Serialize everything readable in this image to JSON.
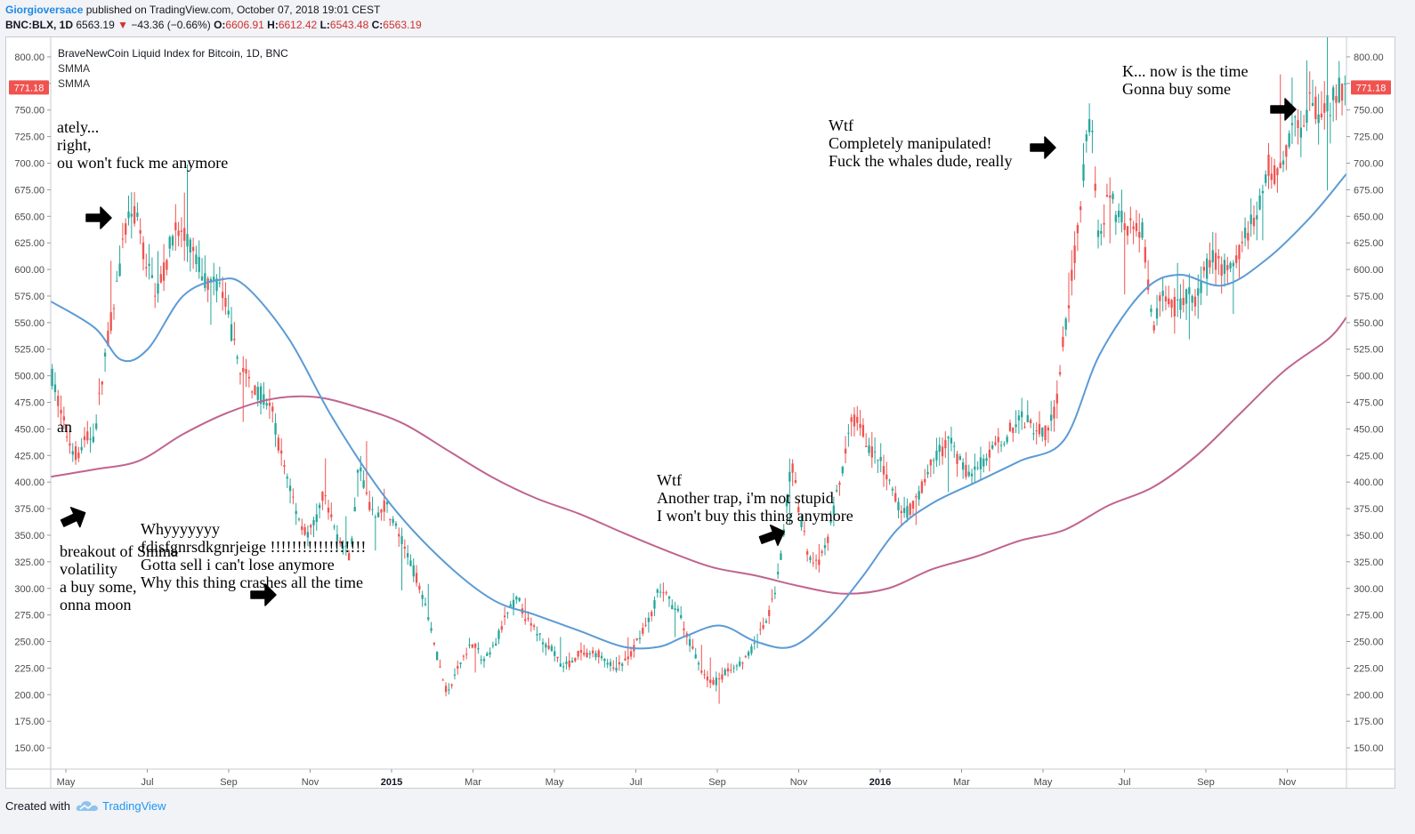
{
  "header": {
    "author": "Giorgioversace",
    "published": "published on TradingView.com, October 07, 2018 19:01 CEST",
    "symbol": "BNC:BLX, 1D",
    "last": "6563.19",
    "change": "−43.36 (−0.66%)",
    "o_label": "O:",
    "o_value": "6606.91",
    "h_label": "H:",
    "h_value": "6612.42",
    "l_label": "L:",
    "l_value": "6543.48",
    "c_label": "C:",
    "c_value": "6563.19",
    "down_icon": "triangle-down-icon"
  },
  "legend": {
    "title": "BraveNewCoin Liquid Index for Bitcoin, 1D, BNC",
    "ind1": "SMMA",
    "ind2": "SMMA"
  },
  "footer": {
    "created_with": "Created with",
    "brand": "TradingView",
    "logo_icon": "tradingview-cloud-icon"
  },
  "colors": {
    "up": "#26a69a",
    "down": "#ef5350",
    "smma_fast": "#5b9bd5",
    "smma_slow": "#c0648f",
    "price_badge": "#ef5350"
  },
  "chart_data": {
    "type": "candlestick",
    "ylim": [
      130,
      810
    ],
    "y_ticks": [
      "800.00",
      "775.00",
      "750.00",
      "725.00",
      "700.00",
      "675.00",
      "650.00",
      "625.00",
      "600.00",
      "575.00",
      "550.00",
      "525.00",
      "500.00",
      "475.00",
      "450.00",
      "425.00",
      "400.00",
      "375.00",
      "350.00",
      "325.00",
      "300.00",
      "275.00",
      "250.00",
      "225.00",
      "200.00",
      "175.00",
      "150.00"
    ],
    "current_price": "771.18",
    "x_ticks": [
      {
        "label": "May",
        "bold": false
      },
      {
        "label": "Jul",
        "bold": false
      },
      {
        "label": "Sep",
        "bold": false
      },
      {
        "label": "Nov",
        "bold": false
      },
      {
        "label": "2015",
        "bold": true
      },
      {
        "label": "Mar",
        "bold": false
      },
      {
        "label": "May",
        "bold": false
      },
      {
        "label": "Jul",
        "bold": false
      },
      {
        "label": "Sep",
        "bold": false
      },
      {
        "label": "Nov",
        "bold": false
      },
      {
        "label": "2016",
        "bold": true
      },
      {
        "label": "Mar",
        "bold": false
      },
      {
        "label": "May",
        "bold": false
      },
      {
        "label": "Jul",
        "bold": false
      },
      {
        "label": "Sep",
        "bold": false
      },
      {
        "label": "Nov",
        "bold": false
      }
    ],
    "price_path": [
      [
        0,
        505
      ],
      [
        3,
        470
      ],
      [
        6,
        440
      ],
      [
        9,
        425
      ],
      [
        12,
        440
      ],
      [
        15,
        445
      ],
      [
        18,
        510
      ],
      [
        21,
        560
      ],
      [
        24,
        610
      ],
      [
        27,
        660
      ],
      [
        30,
        640
      ],
      [
        33,
        600
      ],
      [
        36,
        580
      ],
      [
        39,
        600
      ],
      [
        42,
        640
      ],
      [
        45,
        630
      ],
      [
        48,
        620
      ],
      [
        51,
        600
      ],
      [
        54,
        585
      ],
      [
        57,
        590
      ],
      [
        60,
        560
      ],
      [
        63,
        520
      ],
      [
        66,
        500
      ],
      [
        69,
        490
      ],
      [
        72,
        480
      ],
      [
        75,
        470
      ],
      [
        78,
        430
      ],
      [
        81,
        400
      ],
      [
        84,
        370
      ],
      [
        87,
        350
      ],
      [
        90,
        360
      ],
      [
        93,
        390
      ],
      [
        96,
        360
      ],
      [
        99,
        340
      ],
      [
        102,
        330
      ],
      [
        105,
        420
      ],
      [
        108,
        380
      ],
      [
        111,
        370
      ],
      [
        114,
        380
      ],
      [
        117,
        360
      ],
      [
        120,
        340
      ],
      [
        123,
        320
      ],
      [
        126,
        300
      ],
      [
        129,
        270
      ],
      [
        132,
        230
      ],
      [
        135,
        200
      ],
      [
        138,
        220
      ],
      [
        141,
        240
      ],
      [
        144,
        250
      ],
      [
        147,
        230
      ],
      [
        150,
        240
      ],
      [
        153,
        260
      ],
      [
        156,
        280
      ],
      [
        159,
        290
      ],
      [
        162,
        270
      ],
      [
        165,
        260
      ],
      [
        168,
        250
      ],
      [
        171,
        240
      ],
      [
        174,
        225
      ],
      [
        177,
        230
      ],
      [
        180,
        240
      ],
      [
        183,
        235
      ],
      [
        186,
        240
      ],
      [
        189,
        230
      ],
      [
        192,
        225
      ],
      [
        195,
        230
      ],
      [
        198,
        240
      ],
      [
        201,
        260
      ],
      [
        204,
        270
      ],
      [
        207,
        300
      ],
      [
        210,
        290
      ],
      [
        213,
        280
      ],
      [
        216,
        260
      ],
      [
        219,
        240
      ],
      [
        222,
        220
      ],
      [
        225,
        210
      ],
      [
        228,
        215
      ],
      [
        231,
        225
      ],
      [
        234,
        230
      ],
      [
        237,
        235
      ],
      [
        240,
        250
      ],
      [
        243,
        265
      ],
      [
        246,
        290
      ],
      [
        249,
        340
      ],
      [
        252,
        420
      ],
      [
        255,
        370
      ],
      [
        258,
        330
      ],
      [
        261,
        320
      ],
      [
        264,
        340
      ],
      [
        267,
        380
      ],
      [
        270,
        420
      ],
      [
        273,
        460
      ],
      [
        276,
        450
      ],
      [
        279,
        430
      ],
      [
        282,
        420
      ],
      [
        285,
        400
      ],
      [
        288,
        380
      ],
      [
        291,
        370
      ],
      [
        294,
        380
      ],
      [
        297,
        400
      ],
      [
        300,
        420
      ],
      [
        303,
        430
      ],
      [
        306,
        440
      ],
      [
        309,
        420
      ],
      [
        312,
        410
      ],
      [
        315,
        415
      ],
      [
        318,
        420
      ],
      [
        321,
        430
      ],
      [
        324,
        440
      ],
      [
        327,
        450
      ],
      [
        330,
        460
      ],
      [
        333,
        455
      ],
      [
        336,
        450
      ],
      [
        339,
        445
      ],
      [
        342,
        470
      ],
      [
        345,
        540
      ],
      [
        348,
        600
      ],
      [
        351,
        680
      ],
      [
        354,
        750
      ],
      [
        357,
        620
      ],
      [
        360,
        680
      ],
      [
        363,
        650
      ],
      [
        366,
        640
      ],
      [
        369,
        650
      ],
      [
        372,
        630
      ],
      [
        375,
        540
      ],
      [
        378,
        580
      ],
      [
        381,
        560
      ],
      [
        384,
        570
      ],
      [
        387,
        575
      ],
      [
        390,
        570
      ],
      [
        393,
        600
      ],
      [
        396,
        610
      ],
      [
        399,
        600
      ],
      [
        402,
        605
      ],
      [
        405,
        620
      ],
      [
        408,
        640
      ],
      [
        411,
        650
      ],
      [
        414,
        700
      ],
      [
        417,
        690
      ],
      [
        420,
        710
      ],
      [
        423,
        740
      ],
      [
        426,
        730
      ],
      [
        429,
        760
      ],
      [
        432,
        740
      ],
      [
        435,
        755
      ],
      [
        438,
        770
      ]
    ],
    "smma_fast": [
      [
        0,
        570
      ],
      [
        15,
        545
      ],
      [
        24,
        515
      ],
      [
        33,
        525
      ],
      [
        45,
        575
      ],
      [
        57,
        590
      ],
      [
        66,
        585
      ],
      [
        81,
        535
      ],
      [
        96,
        460
      ],
      [
        114,
        385
      ],
      [
        132,
        330
      ],
      [
        150,
        290
      ],
      [
        165,
        275
      ],
      [
        180,
        260
      ],
      [
        195,
        245
      ],
      [
        207,
        245
      ],
      [
        216,
        255
      ],
      [
        228,
        265
      ],
      [
        240,
        250
      ],
      [
        252,
        245
      ],
      [
        264,
        270
      ],
      [
        276,
        310
      ],
      [
        288,
        355
      ],
      [
        300,
        380
      ],
      [
        315,
        400
      ],
      [
        330,
        420
      ],
      [
        345,
        440
      ],
      [
        357,
        520
      ],
      [
        372,
        580
      ],
      [
        384,
        595
      ],
      [
        399,
        585
      ],
      [
        414,
        610
      ],
      [
        429,
        650
      ],
      [
        441,
        690
      ]
    ],
    "smma_slow": [
      [
        0,
        405
      ],
      [
        15,
        412
      ],
      [
        30,
        420
      ],
      [
        45,
        445
      ],
      [
        60,
        465
      ],
      [
        75,
        478
      ],
      [
        90,
        480
      ],
      [
        105,
        470
      ],
      [
        120,
        455
      ],
      [
        135,
        430
      ],
      [
        150,
        405
      ],
      [
        165,
        385
      ],
      [
        180,
        370
      ],
      [
        195,
        352
      ],
      [
        210,
        335
      ],
      [
        225,
        320
      ],
      [
        240,
        312
      ],
      [
        255,
        302
      ],
      [
        270,
        295
      ],
      [
        285,
        300
      ],
      [
        300,
        318
      ],
      [
        315,
        330
      ],
      [
        330,
        345
      ],
      [
        345,
        355
      ],
      [
        360,
        378
      ],
      [
        375,
        395
      ],
      [
        390,
        425
      ],
      [
        405,
        465
      ],
      [
        420,
        505
      ],
      [
        435,
        535
      ],
      [
        441,
        555
      ]
    ],
    "annotations": [
      {
        "lines": [
          "ately...",
          "right,",
          "ou won't fuck me anymore"
        ],
        "x": 57,
        "y": 90
      },
      {
        "lines": [
          "an"
        ],
        "x": 57,
        "y": 427
      },
      {
        "lines": [
          "breakout of Smma",
          "volatility",
          "a buy some,",
          "onna moon"
        ],
        "x": 60,
        "y": 567
      },
      {
        "lines": [
          "Whyyyyyyy",
          "fdisfgnrsdkgnrjeige !!!!!!!!!!!!!!!!!!",
          "Gotta sell i can't lose anymore",
          "Why this thing crashes all the time"
        ],
        "x": 151,
        "y": 542
      },
      {
        "lines": [
          "Wtf",
          "Another trap, i'm not stupid",
          "I won't buy this thing anymore"
        ],
        "x": 731,
        "y": 487
      },
      {
        "lines": [
          "Wtf",
          "Completely manipulated!",
          "Fuck the whales dude, really"
        ],
        "x": 924,
        "y": 88
      },
      {
        "lines": [
          "K... now is the time",
          "Gonna buy some"
        ],
        "x": 1254,
        "y": 27
      }
    ]
  }
}
